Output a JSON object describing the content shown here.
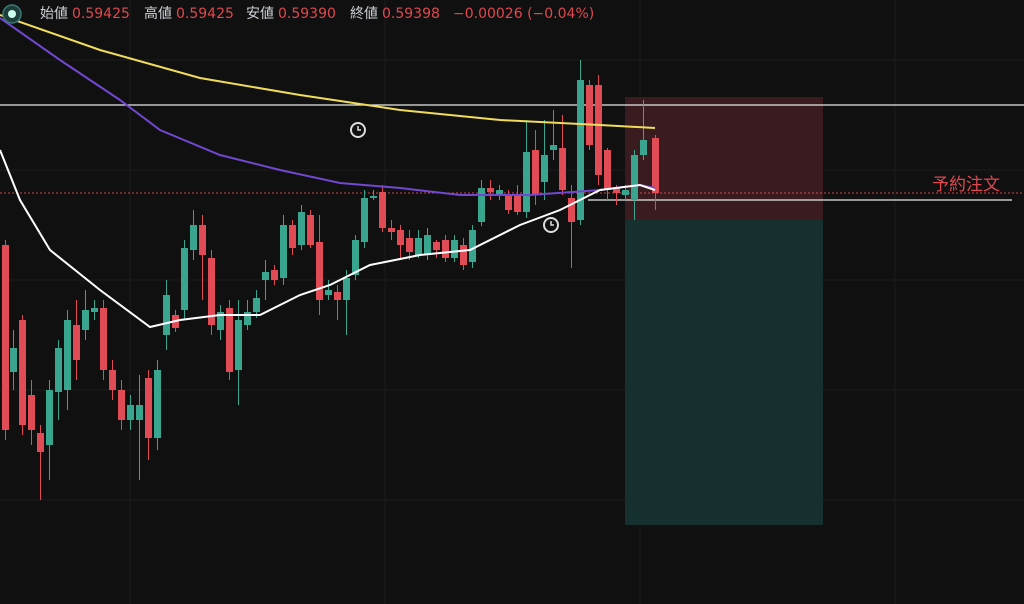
{
  "header": {
    "items": [
      {
        "label": "始値",
        "value": "0.59425"
      },
      {
        "label": "高値",
        "value": "0.59425"
      },
      {
        "label": "安値",
        "value": "0.59390"
      },
      {
        "label": "終値",
        "value": "0.59398"
      }
    ],
    "change": "−0.00026 (−0.04%)"
  },
  "order_label": "予約注文"
}
